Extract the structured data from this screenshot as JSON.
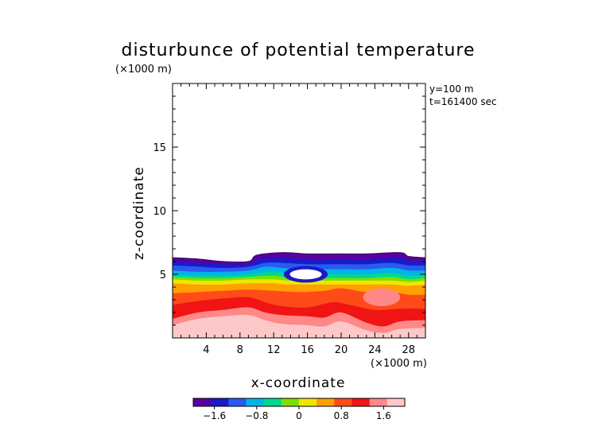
{
  "chart_data": {
    "type": "heatmap",
    "title": "disturbunce of potential temperature",
    "xlabel": "x-coordinate",
    "ylabel": "z-coordinate",
    "x_unit": "(×1000 m)",
    "y_unit": "(×1000 m)",
    "annotations": [
      "y=100  m",
      "t=161400 sec"
    ],
    "xlim": [
      0,
      30
    ],
    "ylim": [
      0,
      20
    ],
    "x_ticks": [
      4,
      8,
      12,
      16,
      20,
      24,
      28
    ],
    "y_ticks": [
      5,
      10,
      15
    ],
    "colorbar": {
      "range": [
        -2.0,
        2.0
      ],
      "ticks": [
        -1.6,
        -0.8,
        0,
        0.8,
        1.6
      ],
      "tick_labels": [
        "−1.6",
        "−0.8",
        "0",
        "0.8",
        "1.6"
      ]
    },
    "bands": [
      {
        "value": -2.0,
        "color": "#5a00a0",
        "top": [
          [
            0,
            6.3
          ],
          [
            3,
            6.2
          ],
          [
            6,
            6.0
          ],
          [
            9,
            6.0
          ],
          [
            10,
            6.5
          ],
          [
            13,
            6.7
          ],
          [
            16,
            6.6
          ],
          [
            20,
            6.6
          ],
          [
            23,
            6.6
          ],
          [
            27,
            6.7
          ],
          [
            28,
            6.4
          ],
          [
            30,
            6.3
          ]
        ]
      },
      {
        "value": -1.6,
        "color": "#1a1ac8",
        "top": [
          [
            0,
            6.0
          ],
          [
            3,
            5.9
          ],
          [
            6,
            5.8
          ],
          [
            9,
            5.8
          ],
          [
            10,
            6.2
          ],
          [
            13,
            6.3
          ],
          [
            16,
            6.2
          ],
          [
            20,
            6.2
          ],
          [
            23,
            6.2
          ],
          [
            27,
            6.3
          ],
          [
            28,
            6.1
          ],
          [
            30,
            6.0
          ]
        ]
      },
      {
        "value": -1.2,
        "color": "#2a5af0",
        "top": [
          [
            0,
            5.7
          ],
          [
            3,
            5.6
          ],
          [
            6,
            5.5
          ],
          [
            9,
            5.6
          ],
          [
            11,
            5.9
          ],
          [
            13,
            5.9
          ],
          [
            16,
            5.8
          ],
          [
            20,
            5.8
          ],
          [
            23,
            5.8
          ],
          [
            26,
            5.9
          ],
          [
            28,
            5.7
          ],
          [
            30,
            5.7
          ]
        ]
      },
      {
        "value": -0.8,
        "color": "#00b4e6",
        "top": [
          [
            0,
            5.3
          ],
          [
            3,
            5.2
          ],
          [
            6,
            5.2
          ],
          [
            9,
            5.3
          ],
          [
            11,
            5.6
          ],
          [
            13,
            5.5
          ],
          [
            16,
            5.4
          ],
          [
            20,
            5.4
          ],
          [
            23,
            5.4
          ],
          [
            26,
            5.5
          ],
          [
            28,
            5.3
          ],
          [
            30,
            5.3
          ]
        ]
      },
      {
        "value": -0.4,
        "color": "#00d890",
        "top": [
          [
            0,
            5.0
          ],
          [
            3,
            4.9
          ],
          [
            6,
            4.9
          ],
          [
            9,
            5.0
          ],
          [
            12,
            5.2
          ],
          [
            14,
            5.0
          ],
          [
            18,
            5.0
          ],
          [
            20,
            5.0
          ],
          [
            23,
            5.0
          ],
          [
            26,
            5.1
          ],
          [
            28,
            4.9
          ],
          [
            30,
            5.0
          ]
        ]
      },
      {
        "value": 0.0,
        "color": "#7ce000",
        "top": [
          [
            0,
            4.8
          ],
          [
            3,
            4.7
          ],
          [
            6,
            4.7
          ],
          [
            9,
            4.8
          ],
          [
            12,
            4.9
          ],
          [
            14,
            4.7
          ],
          [
            18,
            4.7
          ],
          [
            20,
            4.7
          ],
          [
            23,
            4.7
          ],
          [
            26,
            4.8
          ],
          [
            28,
            4.6
          ],
          [
            30,
            4.7
          ]
        ]
      },
      {
        "value": 0.4,
        "color": "#f0e600",
        "top": [
          [
            0,
            4.6
          ],
          [
            3,
            4.5
          ],
          [
            6,
            4.5
          ],
          [
            9,
            4.6
          ],
          [
            12,
            4.6
          ],
          [
            14,
            4.5
          ],
          [
            18,
            4.5
          ],
          [
            20,
            4.5
          ],
          [
            23,
            4.5
          ],
          [
            26,
            4.5
          ],
          [
            28,
            4.4
          ],
          [
            30,
            4.5
          ]
        ]
      },
      {
        "value": 0.8,
        "color": "#ffa000",
        "top": [
          [
            0,
            4.3
          ],
          [
            3,
            4.2
          ],
          [
            6,
            4.2
          ],
          [
            9,
            4.3
          ],
          [
            12,
            4.3
          ],
          [
            14,
            4.2
          ],
          [
            18,
            4.2
          ],
          [
            20,
            4.2
          ],
          [
            23,
            4.2
          ],
          [
            26,
            4.2
          ],
          [
            28,
            4.1
          ],
          [
            30,
            4.2
          ]
        ]
      },
      {
        "value": 1.2,
        "color": "#ff4a1a",
        "top": [
          [
            0,
            3.5
          ],
          [
            3,
            3.6
          ],
          [
            6,
            3.7
          ],
          [
            9,
            3.8
          ],
          [
            12,
            3.7
          ],
          [
            15,
            3.6
          ],
          [
            18,
            3.7
          ],
          [
            20,
            3.9
          ],
          [
            23,
            3.6
          ],
          [
            26,
            3.6
          ],
          [
            28,
            3.4
          ],
          [
            30,
            3.4
          ]
        ]
      },
      {
        "value": 1.6,
        "color": "#f01414",
        "top": [
          [
            0,
            2.6
          ],
          [
            3,
            2.9
          ],
          [
            6,
            3.1
          ],
          [
            9,
            3.2
          ],
          [
            11,
            2.8
          ],
          [
            13,
            2.5
          ],
          [
            16,
            2.4
          ],
          [
            19,
            2.8
          ],
          [
            21,
            2.6
          ],
          [
            24,
            2.2
          ],
          [
            27,
            2.3
          ],
          [
            30,
            2.3
          ]
        ]
      },
      {
        "value": 2.0,
        "color": "#ff8888",
        "top": [
          [
            0,
            1.5
          ],
          [
            3,
            2.0
          ],
          [
            6,
            2.2
          ],
          [
            9,
            2.4
          ],
          [
            11,
            2.0
          ],
          [
            13,
            1.8
          ],
          [
            16,
            1.7
          ],
          [
            18,
            1.6
          ],
          [
            20,
            2.0
          ],
          [
            23,
            1.2
          ],
          [
            25,
            0.9
          ],
          [
            27,
            1.3
          ],
          [
            30,
            1.4
          ]
        ]
      },
      {
        "value": 2.4,
        "color": "#ffc8c8",
        "top": [
          [
            0,
            1.0
          ],
          [
            3,
            1.5
          ],
          [
            6,
            1.7
          ],
          [
            9,
            1.8
          ],
          [
            11,
            1.4
          ],
          [
            13,
            1.1
          ],
          [
            16,
            1.0
          ],
          [
            18,
            0.9
          ],
          [
            20,
            1.3
          ],
          [
            23,
            0.6
          ],
          [
            25,
            0.4
          ],
          [
            27,
            0.7
          ],
          [
            30,
            0.8
          ]
        ]
      }
    ],
    "features": [
      {
        "type": "cold_core_outline",
        "cx": 15.8,
        "cy": 5.0,
        "rx": 2.6,
        "ry": 0.65,
        "color": "#1a1ac8"
      },
      {
        "type": "white_core",
        "cx": 15.8,
        "cy": 5.0,
        "rx": 1.9,
        "ry": 0.4,
        "color": "#ffffff"
      },
      {
        "type": "warm_cell",
        "cx": 24.8,
        "cy": 3.2,
        "rx": 2.2,
        "ry": 0.7,
        "color": "#ff8888"
      }
    ],
    "top_boundary": [
      [
        0,
        6.3
      ],
      [
        3,
        6.2
      ],
      [
        6,
        6.0
      ],
      [
        9,
        6.0
      ],
      [
        10,
        6.5
      ],
      [
        13,
        6.7
      ],
      [
        16,
        6.6
      ],
      [
        20,
        6.6
      ],
      [
        23,
        6.6
      ],
      [
        27,
        6.7
      ],
      [
        28,
        6.4
      ],
      [
        30,
        6.3
      ]
    ],
    "colors_bar": [
      "#5a00a0",
      "#1a1ac8",
      "#2a5af0",
      "#00b4e6",
      "#00d890",
      "#7ce000",
      "#f0e600",
      "#ffa000",
      "#ff4a1a",
      "#f01414",
      "#ff8888",
      "#ffc8c8"
    ]
  }
}
